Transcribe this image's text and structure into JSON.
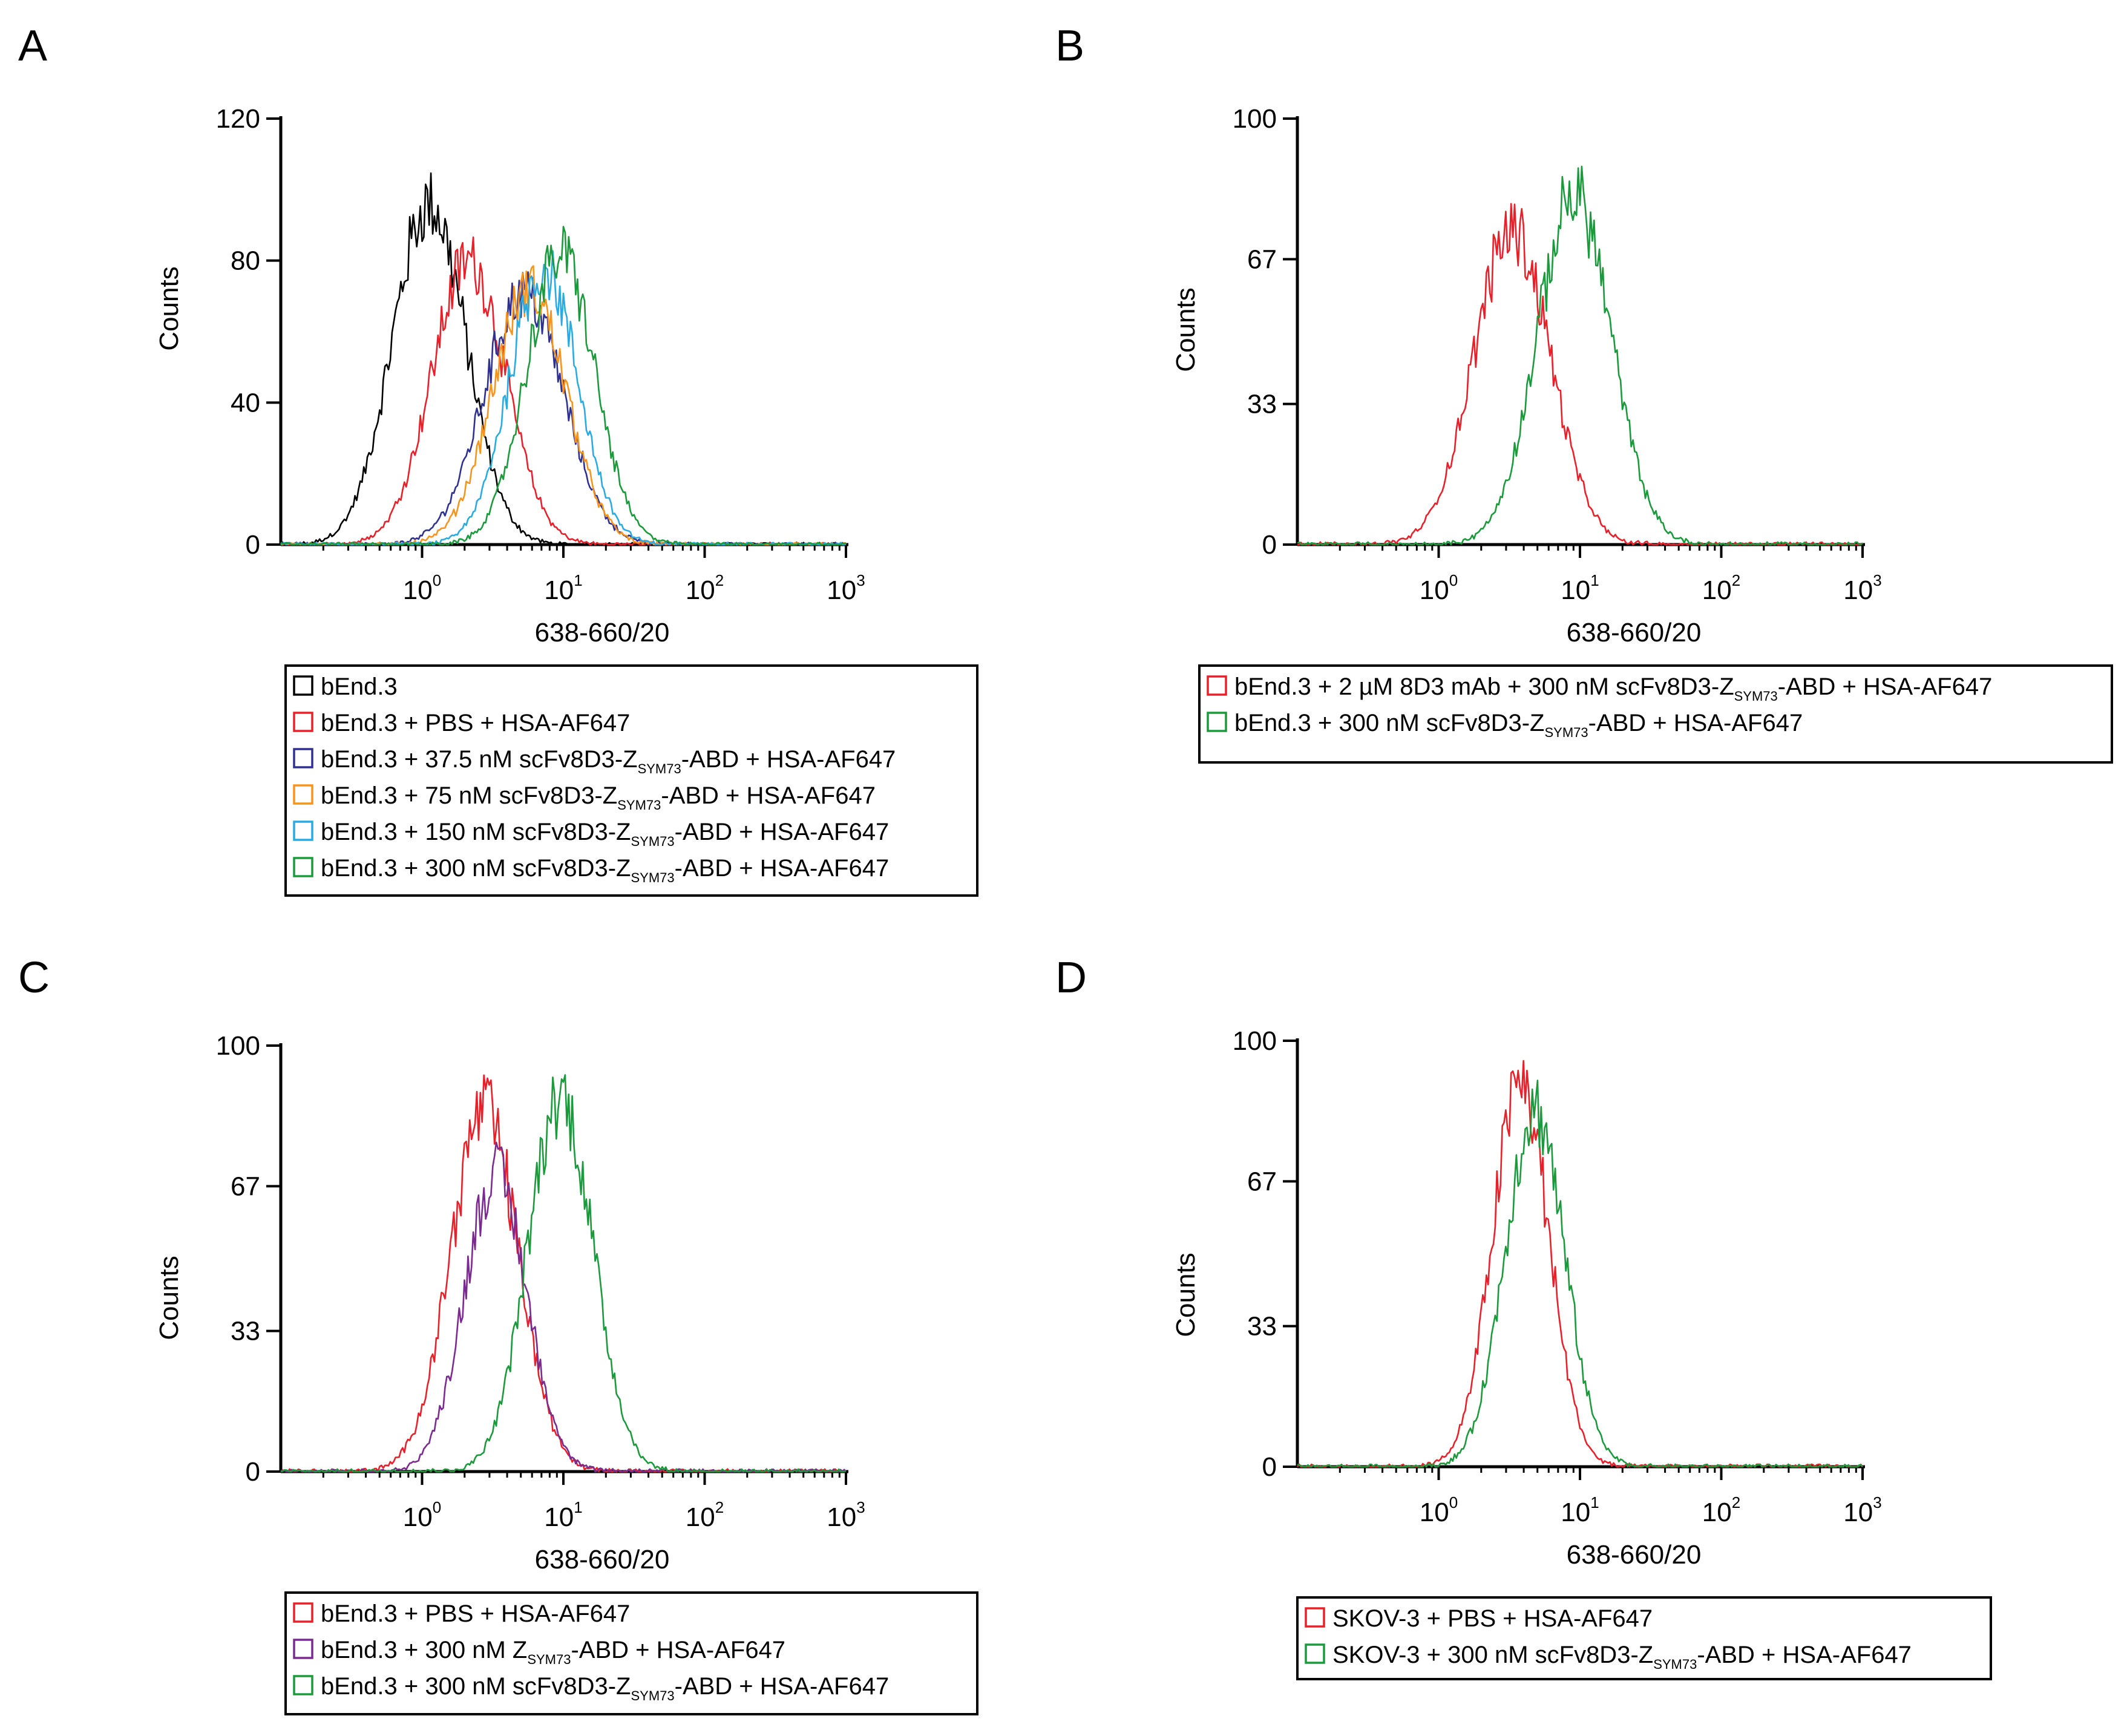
{
  "chart_data": [
    {
      "panel": "A",
      "type": "line",
      "title": "",
      "xlabel": "638-660/20",
      "ylabel": "Counts",
      "xscale": "log",
      "xlim_log10": [
        -1,
        3
      ],
      "ylim": [
        0,
        120
      ],
      "yticks": [
        0,
        40,
        80,
        120
      ],
      "xticks": [
        {
          "base": "10",
          "exp": "0"
        },
        {
          "base": "10",
          "exp": "1"
        },
        {
          "base": "10",
          "exp": "2"
        },
        {
          "base": "10",
          "exp": "3"
        }
      ],
      "series": [
        {
          "name": "bEnd.3",
          "color": "#000000",
          "peak_log10": 0.05,
          "width": 0.26,
          "height": 96,
          "legend": {
            "pre": "bEnd.3",
            "sub": "",
            "post": ""
          }
        },
        {
          "name": "bEnd.3 + PBS + HSA-AF647",
          "color": "#e8202a",
          "peak_log10": 0.33,
          "width": 0.26,
          "height": 80,
          "legend": {
            "pre": "bEnd.3 + PBS + HSA-AF647",
            "sub": "",
            "post": ""
          }
        },
        {
          "name": "bEnd.3 + 37.5 nM scFv8D3-ZSYM73-ABD + HSA-AF647",
          "color": "#2e3192",
          "peak_log10": 0.72,
          "width": 0.28,
          "height": 71,
          "legend": {
            "pre": "bEnd.3 + 37.5 nM scFv8D3-Z",
            "sub": "SYM73",
            "post": "-ABD + HSA-AF647"
          }
        },
        {
          "name": "bEnd.3 + 75 nM scFv8D3-ZSYM73-ABD + HSA-AF647",
          "color": "#f7941d",
          "peak_log10": 0.76,
          "width": 0.26,
          "height": 72,
          "legend": {
            "pre": "bEnd.3 + 75 nM scFv8D3-Z",
            "sub": "SYM73",
            "post": "-ABD + HSA-AF647"
          }
        },
        {
          "name": "bEnd.3 + 150 nM scFv8D3-ZSYM73-ABD + HSA-AF647",
          "color": "#29abe2",
          "peak_log10": 0.86,
          "width": 0.24,
          "height": 78,
          "legend": {
            "pre": "bEnd.3 + 150 nM scFv8D3-Z",
            "sub": "SYM73",
            "post": "-ABD + HSA-AF647"
          }
        },
        {
          "name": "bEnd.3 + 300 nM scFv8D3-ZSYM73-ABD + HSA-AF647",
          "color": "#1b9a3c",
          "peak_log10": 0.98,
          "width": 0.24,
          "height": 82,
          "legend": {
            "pre": "bEnd.3 + 300 nM scFv8D3-Z",
            "sub": "SYM73",
            "post": "-ABD + HSA-AF647"
          }
        }
      ]
    },
    {
      "panel": "B",
      "type": "line",
      "title": "",
      "xlabel": "638-660/20",
      "ylabel": "Counts",
      "xscale": "log",
      "xlim_log10": [
        -1,
        3
      ],
      "ylim": [
        0,
        100
      ],
      "yticks": [
        0,
        33,
        67,
        100
      ],
      "xticks": [
        {
          "base": "10",
          "exp": "0"
        },
        {
          "base": "10",
          "exp": "1"
        },
        {
          "base": "10",
          "exp": "2"
        },
        {
          "base": "10",
          "exp": "3"
        }
      ],
      "series": [
        {
          "name": "bEnd.3 + 2 µM 8D3 mAb + 300 nM scFv8D3-ZSYM73-ABD + HSA-AF647",
          "color": "#e8202a",
          "peak_log10": 0.52,
          "width": 0.27,
          "height": 74,
          "legend": {
            "pre": "bEnd.3 + 2 µM 8D3 mAb + 300 nM scFv8D3-Z",
            "sub": "SYM73",
            "post": "-ABD + HSA-AF647"
          }
        },
        {
          "name": "bEnd.3 + 300 nM scFv8D3-ZSYM73-ABD + HSA-AF647",
          "color": "#1b9a3c",
          "peak_log10": 0.96,
          "width": 0.26,
          "height": 82,
          "legend": {
            "pre": "bEnd.3 + 300 nM scFv8D3-Z",
            "sub": "SYM73",
            "post": "-ABD + HSA-AF647"
          }
        }
      ]
    },
    {
      "panel": "C",
      "type": "line",
      "title": "",
      "xlabel": "638-660/20",
      "ylabel": "Counts",
      "xscale": "log",
      "xlim_log10": [
        -1,
        3
      ],
      "ylim": [
        0,
        100
      ],
      "yticks": [
        0,
        33,
        67,
        100
      ],
      "xticks": [
        {
          "base": "10",
          "exp": "0"
        },
        {
          "base": "10",
          "exp": "1"
        },
        {
          "base": "10",
          "exp": "2"
        },
        {
          "base": "10",
          "exp": "3"
        }
      ],
      "series": [
        {
          "name": "bEnd.3 + PBS + HSA-AF647",
          "color": "#e8202a",
          "peak_log10": 0.44,
          "width": 0.24,
          "height": 85,
          "legend": {
            "pre": "bEnd.3 + PBS + HSA-AF647",
            "sub": "",
            "post": ""
          }
        },
        {
          "name": "bEnd.3 + 300 nM ZSYM73-ABD + HSA-AF647",
          "color": "#7b2b8f",
          "peak_log10": 0.52,
          "width": 0.22,
          "height": 70,
          "legend": {
            "pre": "bEnd.3 + 300 nM Z",
            "sub": "SYM73",
            "post": "-ABD + HSA-AF647"
          }
        },
        {
          "name": "bEnd.3 + 300 nM scFv8D3-ZSYM73-ABD + HSA-AF647",
          "color": "#1b9a3c",
          "peak_log10": 0.98,
          "width": 0.23,
          "height": 88,
          "legend": {
            "pre": "bEnd.3 + 300 nM scFv8D3-Z",
            "sub": "SYM73",
            "post": "-ABD + HSA-AF647"
          }
        }
      ]
    },
    {
      "panel": "D",
      "type": "line",
      "title": "",
      "xlabel": "638-660/20",
      "ylabel": "Counts",
      "xscale": "log",
      "xlim_log10": [
        -1,
        3
      ],
      "ylim": [
        0,
        100
      ],
      "yticks": [
        0,
        33,
        67,
        100
      ],
      "xticks": [
        {
          "base": "10",
          "exp": "0"
        },
        {
          "base": "10",
          "exp": "1"
        },
        {
          "base": "10",
          "exp": "2"
        },
        {
          "base": "10",
          "exp": "3"
        }
      ],
      "series": [
        {
          "name": "SKOV-3 + PBS + HSA-AF647",
          "color": "#e8202a",
          "peak_log10": 0.58,
          "width": 0.2,
          "height": 90,
          "legend": {
            "pre": "SKOV-3 + PBS + HSA-AF647",
            "sub": "",
            "post": ""
          }
        },
        {
          "name": "SKOV-3 + 300 nM scFv8D3-ZSYM73-ABD + HSA-AF647",
          "color": "#1b9a3c",
          "peak_log10": 0.68,
          "width": 0.21,
          "height": 84,
          "legend": {
            "pre": "SKOV-3 + 300 nM scFv8D3-Z",
            "sub": "SYM73",
            "post": "-ABD + HSA-AF647"
          }
        }
      ]
    }
  ]
}
